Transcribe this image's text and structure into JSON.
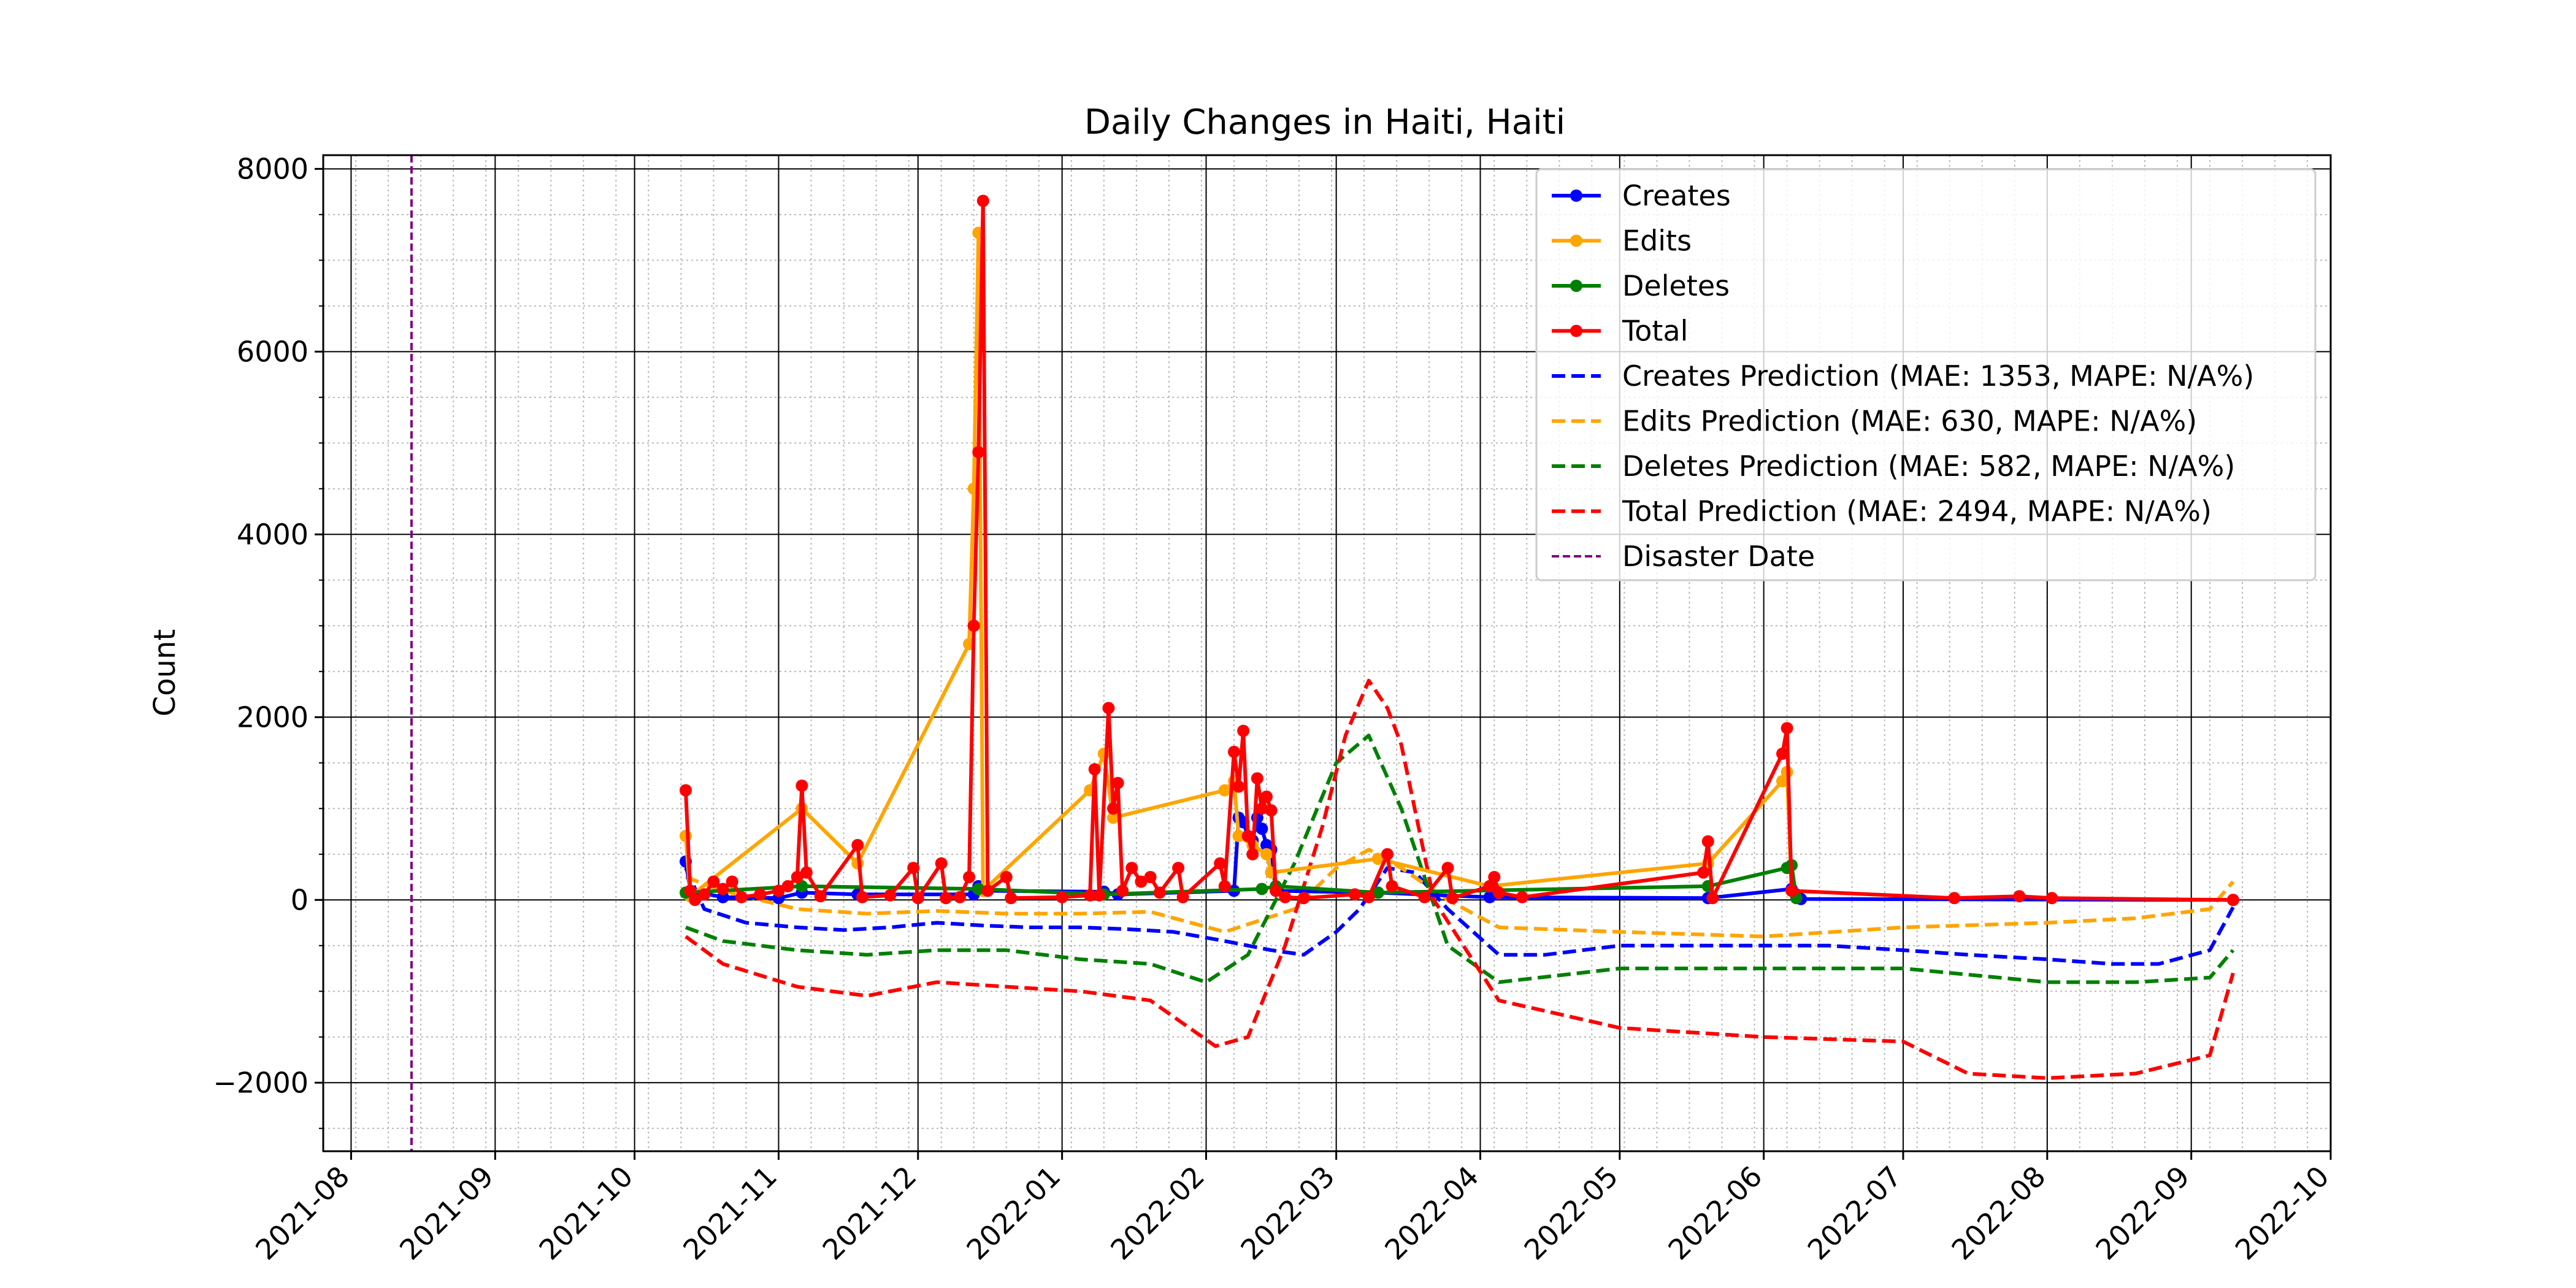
{
  "chart_data": {
    "type": "line",
    "title": "Daily Changes in Haiti, Haiti",
    "xlabel": "",
    "ylabel": "Count",
    "xlim": [
      "2021-07-26",
      "2022-10-01"
    ],
    "ylim": [
      -2750,
      8150
    ],
    "x_ticks": [
      "2021-08",
      "2021-09",
      "2021-10",
      "2021-11",
      "2021-12",
      "2022-01",
      "2022-02",
      "2022-03",
      "2022-04",
      "2022-05",
      "2022-06",
      "2022-07",
      "2022-08",
      "2022-09",
      "2022-10"
    ],
    "y_ticks": [
      -2000,
      0,
      2000,
      4000,
      6000,
      8000
    ],
    "grid": true,
    "legend_position": "top-right",
    "colors": {
      "creates": "#0000ff",
      "edits": "#ffa500",
      "deletes": "#008000",
      "total": "#ff0000",
      "disaster": "#800080"
    },
    "disaster_date": "2021-08-14",
    "legend": [
      {
        "label": "Creates",
        "color": "#0000ff",
        "style": "solid-marker"
      },
      {
        "label": "Edits",
        "color": "#ffa500",
        "style": "solid-marker"
      },
      {
        "label": "Deletes",
        "color": "#008000",
        "style": "solid-marker"
      },
      {
        "label": "Total",
        "color": "#ff0000",
        "style": "solid-marker"
      },
      {
        "label": "Creates Prediction (MAE: 1353, MAPE: N/A%)",
        "color": "#0000ff",
        "style": "dashed"
      },
      {
        "label": "Edits Prediction (MAE: 630, MAPE: N/A%)",
        "color": "#ffa500",
        "style": "dashed"
      },
      {
        "label": "Deletes Prediction (MAE: 582, MAPE: N/A%)",
        "color": "#008000",
        "style": "dashed"
      },
      {
        "label": "Total Prediction (MAE: 2494, MAPE: N/A%)",
        "color": "#ff0000",
        "style": "dashed"
      },
      {
        "label": "Disaster Date",
        "color": "#800080",
        "style": "dashed-thin"
      }
    ],
    "series": [
      {
        "name": "Creates",
        "color": "#0000ff",
        "style": "solid-marker",
        "points": [
          [
            "2021-10-12",
            420
          ],
          [
            "2021-10-13",
            100
          ],
          [
            "2021-10-20",
            30
          ],
          [
            "2021-11-01",
            20
          ],
          [
            "2021-11-06",
            80
          ],
          [
            "2021-11-18",
            60
          ],
          [
            "2021-12-13",
            60
          ],
          [
            "2021-12-14",
            150
          ],
          [
            "2021-12-15",
            100
          ],
          [
            "2022-01-10",
            90
          ],
          [
            "2022-01-13",
            60
          ],
          [
            "2022-02-07",
            100
          ],
          [
            "2022-02-08",
            900
          ],
          [
            "2022-02-09",
            850
          ],
          [
            "2022-02-10",
            700
          ],
          [
            "2022-02-11",
            650
          ],
          [
            "2022-02-12",
            900
          ],
          [
            "2022-02-13",
            780
          ],
          [
            "2022-02-14",
            600
          ],
          [
            "2022-02-15",
            550
          ],
          [
            "2022-02-16",
            100
          ],
          [
            "2022-03-10",
            80
          ],
          [
            "2022-04-03",
            30
          ],
          [
            "2022-05-20",
            20
          ],
          [
            "2022-06-07",
            120
          ],
          [
            "2022-06-08",
            60
          ],
          [
            "2022-06-09",
            10
          ],
          [
            "2022-09-10",
            0
          ]
        ]
      },
      {
        "name": "Edits",
        "color": "#ffa500",
        "style": "solid-marker",
        "points": [
          [
            "2021-10-12",
            700
          ],
          [
            "2021-10-13",
            40
          ],
          [
            "2021-11-06",
            1000
          ],
          [
            "2021-11-18",
            400
          ],
          [
            "2021-12-12",
            2800
          ],
          [
            "2021-12-13",
            4500
          ],
          [
            "2021-12-14",
            7300
          ],
          [
            "2021-12-15",
            100
          ],
          [
            "2022-01-07",
            1200
          ],
          [
            "2022-01-10",
            1600
          ],
          [
            "2022-01-12",
            900
          ],
          [
            "2022-02-05",
            1200
          ],
          [
            "2022-02-07",
            1300
          ],
          [
            "2022-02-08",
            700
          ],
          [
            "2022-02-11",
            600
          ],
          [
            "2022-02-14",
            500
          ],
          [
            "2022-02-15",
            300
          ],
          [
            "2022-03-10",
            450
          ],
          [
            "2022-04-03",
            150
          ],
          [
            "2022-05-20",
            400
          ],
          [
            "2022-06-05",
            1300
          ],
          [
            "2022-06-06",
            1400
          ],
          [
            "2022-06-07",
            100
          ]
        ]
      },
      {
        "name": "Deletes",
        "color": "#008000",
        "style": "solid-marker",
        "points": [
          [
            "2021-10-12",
            80
          ],
          [
            "2021-11-06",
            150
          ],
          [
            "2021-12-14",
            120
          ],
          [
            "2022-01-10",
            60
          ],
          [
            "2022-02-13",
            120
          ],
          [
            "2022-02-16",
            150
          ],
          [
            "2022-03-10",
            80
          ],
          [
            "2022-05-20",
            150
          ],
          [
            "2022-06-06",
            350
          ],
          [
            "2022-06-07",
            380
          ],
          [
            "2022-06-08",
            20
          ]
        ]
      },
      {
        "name": "Total",
        "color": "#ff0000",
        "style": "solid-marker",
        "points": [
          [
            "2021-10-12",
            1200
          ],
          [
            "2021-10-13",
            100
          ],
          [
            "2021-10-14",
            0
          ],
          [
            "2021-10-16",
            60
          ],
          [
            "2021-10-18",
            200
          ],
          [
            "2021-10-20",
            120
          ],
          [
            "2021-10-22",
            200
          ],
          [
            "2021-10-24",
            30
          ],
          [
            "2021-10-28",
            60
          ],
          [
            "2021-11-01",
            100
          ],
          [
            "2021-11-03",
            150
          ],
          [
            "2021-11-05",
            250
          ],
          [
            "2021-11-06",
            1250
          ],
          [
            "2021-11-07",
            300
          ],
          [
            "2021-11-10",
            40
          ],
          [
            "2021-11-18",
            600
          ],
          [
            "2021-11-19",
            30
          ],
          [
            "2021-11-25",
            50
          ],
          [
            "2021-11-30",
            350
          ],
          [
            "2021-12-01",
            20
          ],
          [
            "2021-12-06",
            400
          ],
          [
            "2021-12-07",
            20
          ],
          [
            "2021-12-10",
            30
          ],
          [
            "2021-12-12",
            250
          ],
          [
            "2021-12-13",
            3000
          ],
          [
            "2021-12-14",
            4900
          ],
          [
            "2021-12-15",
            7650
          ],
          [
            "2021-12-16",
            100
          ],
          [
            "2021-12-20",
            250
          ],
          [
            "2021-12-21",
            20
          ],
          [
            "2022-01-01",
            30
          ],
          [
            "2022-01-07",
            50
          ],
          [
            "2022-01-08",
            1430
          ],
          [
            "2022-01-09",
            50
          ],
          [
            "2022-01-11",
            2100
          ],
          [
            "2022-01-12",
            1000
          ],
          [
            "2022-01-13",
            1280
          ],
          [
            "2022-01-14",
            100
          ],
          [
            "2022-01-16",
            350
          ],
          [
            "2022-01-18",
            200
          ],
          [
            "2022-01-20",
            250
          ],
          [
            "2022-01-22",
            80
          ],
          [
            "2022-01-26",
            350
          ],
          [
            "2022-01-27",
            30
          ],
          [
            "2022-02-04",
            400
          ],
          [
            "2022-02-05",
            150
          ],
          [
            "2022-02-07",
            1620
          ],
          [
            "2022-02-08",
            1240
          ],
          [
            "2022-02-09",
            1850
          ],
          [
            "2022-02-10",
            700
          ],
          [
            "2022-02-11",
            500
          ],
          [
            "2022-02-12",
            1330
          ],
          [
            "2022-02-13",
            1000
          ],
          [
            "2022-02-14",
            1130
          ],
          [
            "2022-02-15",
            980
          ],
          [
            "2022-02-16",
            100
          ],
          [
            "2022-02-18",
            30
          ],
          [
            "2022-02-22",
            20
          ],
          [
            "2022-03-05",
            60
          ],
          [
            "2022-03-08",
            30
          ],
          [
            "2022-03-12",
            500
          ],
          [
            "2022-03-13",
            150
          ],
          [
            "2022-03-20",
            30
          ],
          [
            "2022-03-25",
            350
          ],
          [
            "2022-03-26",
            20
          ],
          [
            "2022-04-03",
            150
          ],
          [
            "2022-04-04",
            250
          ],
          [
            "2022-04-05",
            80
          ],
          [
            "2022-04-10",
            30
          ],
          [
            "2022-05-19",
            300
          ],
          [
            "2022-05-20",
            640
          ],
          [
            "2022-05-21",
            20
          ],
          [
            "2022-06-05",
            1600
          ],
          [
            "2022-06-06",
            1880
          ],
          [
            "2022-06-07",
            100
          ],
          [
            "2022-07-12",
            20
          ],
          [
            "2022-07-26",
            40
          ],
          [
            "2022-08-02",
            20
          ],
          [
            "2022-09-10",
            0
          ]
        ]
      },
      {
        "name": "Creates Prediction (MAE: 1353, MAPE: N/A%)",
        "color": "#0000ff",
        "style": "dashed",
        "points": [
          [
            "2021-10-12",
            350
          ],
          [
            "2021-10-16",
            -100
          ],
          [
            "2021-10-25",
            -250
          ],
          [
            "2021-11-05",
            -300
          ],
          [
            "2021-11-15",
            -330
          ],
          [
            "2021-11-25",
            -300
          ],
          [
            "2021-12-05",
            -250
          ],
          [
            "2021-12-15",
            -280
          ],
          [
            "2021-12-25",
            -300
          ],
          [
            "2022-01-05",
            -300
          ],
          [
            "2022-01-15",
            -320
          ],
          [
            "2022-01-25",
            -350
          ],
          [
            "2022-02-05",
            -450
          ],
          [
            "2022-02-15",
            -550
          ],
          [
            "2022-02-22",
            -600
          ],
          [
            "2022-03-01",
            -350
          ],
          [
            "2022-03-06",
            -100
          ],
          [
            "2022-03-12",
            350
          ],
          [
            "2022-03-18",
            300
          ],
          [
            "2022-03-25",
            -100
          ],
          [
            "2022-04-05",
            -600
          ],
          [
            "2022-04-15",
            -600
          ],
          [
            "2022-05-01",
            -500
          ],
          [
            "2022-05-15",
            -500
          ],
          [
            "2022-06-01",
            -500
          ],
          [
            "2022-06-15",
            -500
          ],
          [
            "2022-07-01",
            -550
          ],
          [
            "2022-07-15",
            -600
          ],
          [
            "2022-08-01",
            -650
          ],
          [
            "2022-08-15",
            -700
          ],
          [
            "2022-08-25",
            -700
          ],
          [
            "2022-09-05",
            -550
          ],
          [
            "2022-09-10",
            -80
          ]
        ]
      },
      {
        "name": "Edits Prediction (MAE: 630, MAPE: N/A%)",
        "color": "#ffa500",
        "style": "dashed",
        "points": [
          [
            "2021-10-12",
            250
          ],
          [
            "2021-10-20",
            100
          ],
          [
            "2021-11-05",
            -100
          ],
          [
            "2021-11-20",
            -150
          ],
          [
            "2021-12-05",
            -120
          ],
          [
            "2021-12-20",
            -150
          ],
          [
            "2022-01-05",
            -150
          ],
          [
            "2022-01-20",
            -130
          ],
          [
            "2022-02-05",
            -350
          ],
          [
            "2022-02-20",
            -100
          ],
          [
            "2022-03-01",
            350
          ],
          [
            "2022-03-08",
            550
          ],
          [
            "2022-03-15",
            350
          ],
          [
            "2022-03-25",
            0
          ],
          [
            "2022-04-05",
            -300
          ],
          [
            "2022-05-01",
            -350
          ],
          [
            "2022-06-01",
            -400
          ],
          [
            "2022-07-01",
            -300
          ],
          [
            "2022-08-01",
            -250
          ],
          [
            "2022-08-20",
            -200
          ],
          [
            "2022-09-05",
            -100
          ],
          [
            "2022-09-10",
            200
          ]
        ]
      },
      {
        "name": "Deletes Prediction (MAE: 582, MAPE: N/A%)",
        "color": "#008000",
        "style": "dashed",
        "points": [
          [
            "2021-10-12",
            -300
          ],
          [
            "2021-10-20",
            -450
          ],
          [
            "2021-11-05",
            -550
          ],
          [
            "2021-11-20",
            -600
          ],
          [
            "2021-12-05",
            -550
          ],
          [
            "2021-12-20",
            -550
          ],
          [
            "2022-01-05",
            -650
          ],
          [
            "2022-01-20",
            -700
          ],
          [
            "2022-02-01",
            -900
          ],
          [
            "2022-02-10",
            -600
          ],
          [
            "2022-02-20",
            400
          ],
          [
            "2022-03-01",
            1500
          ],
          [
            "2022-03-08",
            1800
          ],
          [
            "2022-03-15",
            1000
          ],
          [
            "2022-03-25",
            -500
          ],
          [
            "2022-04-05",
            -900
          ],
          [
            "2022-05-01",
            -750
          ],
          [
            "2022-06-01",
            -750
          ],
          [
            "2022-07-01",
            -750
          ],
          [
            "2022-08-01",
            -900
          ],
          [
            "2022-08-20",
            -900
          ],
          [
            "2022-09-05",
            -850
          ],
          [
            "2022-09-10",
            -550
          ]
        ]
      },
      {
        "name": "Total Prediction (MAE: 2494, MAPE: N/A%)",
        "color": "#ff0000",
        "style": "dashed",
        "points": [
          [
            "2021-10-12",
            -400
          ],
          [
            "2021-10-20",
            -700
          ],
          [
            "2021-11-05",
            -950
          ],
          [
            "2021-11-20",
            -1050
          ],
          [
            "2021-12-05",
            -900
          ],
          [
            "2021-12-20",
            -950
          ],
          [
            "2022-01-05",
            -1000
          ],
          [
            "2022-01-20",
            -1100
          ],
          [
            "2022-02-03",
            -1600
          ],
          [
            "2022-02-10",
            -1500
          ],
          [
            "2022-02-18",
            -500
          ],
          [
            "2022-02-26",
            800
          ],
          [
            "2022-03-03",
            1800
          ],
          [
            "2022-03-08",
            2400
          ],
          [
            "2022-03-12",
            2100
          ],
          [
            "2022-03-15",
            1700
          ],
          [
            "2022-03-22",
            0
          ],
          [
            "2022-04-05",
            -1100
          ],
          [
            "2022-05-01",
            -1400
          ],
          [
            "2022-06-01",
            -1500
          ],
          [
            "2022-07-01",
            -1550
          ],
          [
            "2022-07-15",
            -1900
          ],
          [
            "2022-08-01",
            -1950
          ],
          [
            "2022-08-20",
            -1900
          ],
          [
            "2022-09-05",
            -1700
          ],
          [
            "2022-09-10",
            -800
          ]
        ]
      }
    ]
  }
}
